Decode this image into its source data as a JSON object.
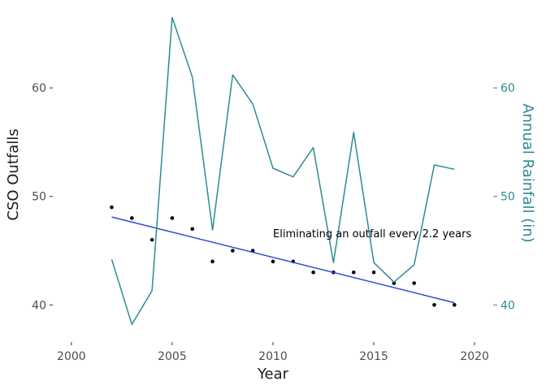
{
  "chart_data": {
    "type": "line",
    "title": "",
    "xlabel": "Year",
    "ylabel_left": "CSO Outfalls",
    "ylabel_right": "Annual Rainfall (in)",
    "xlim": [
      1999.2,
      2020.8
    ],
    "ylim_left": [
      36.8,
      67.5
    ],
    "ylim_right": [
      36.8,
      67.5
    ],
    "x_ticks": [
      2000,
      2005,
      2010,
      2015,
      2020
    ],
    "x_tick_labels": [
      "2000",
      "2005",
      "2010",
      "2015",
      "2020"
    ],
    "y_left_ticks": [
      40,
      50,
      60
    ],
    "y_left_tick_labels": [
      "40",
      "50",
      "60"
    ],
    "y_right_ticks": [
      40,
      50,
      60
    ],
    "y_right_tick_labels": [
      "40",
      "50",
      "60"
    ],
    "grid": false,
    "legend": "none",
    "series": [
      {
        "name": "CSO Outfalls",
        "kind": "scatter",
        "axis": "left",
        "color": "#000000",
        "x": [
          2002,
          2003,
          2004,
          2005,
          2006,
          2007,
          2008,
          2009,
          2010,
          2011,
          2012,
          2013,
          2014,
          2015,
          2016,
          2017,
          2018,
          2019
        ],
        "y": [
          49,
          48,
          46,
          48,
          47,
          44,
          45,
          45,
          44,
          44,
          43,
          43,
          43,
          43,
          42,
          42,
          40,
          40
        ]
      },
      {
        "name": "Trend",
        "kind": "line",
        "axis": "left",
        "color": "#2a4fd1",
        "x": [
          2002,
          2019
        ],
        "y": [
          48.1,
          40.2
        ]
      },
      {
        "name": "Annual Rainfall (in)",
        "kind": "line",
        "axis": "right",
        "color": "#2e8b94",
        "x": [
          2002,
          2003,
          2004,
          2005,
          2006,
          2007,
          2008,
          2009,
          2010,
          2011,
          2012,
          2013,
          2014,
          2015,
          2016,
          2017,
          2018,
          2019
        ],
        "y": [
          44.2,
          38.2,
          41.3,
          66.5,
          61.0,
          46.9,
          61.2,
          58.5,
          52.6,
          51.8,
          54.5,
          43.9,
          55.9,
          43.9,
          42.1,
          43.7,
          52.9,
          52.5
        ]
      }
    ],
    "annotations": [
      {
        "text": "Eliminating an outfall every 2.2 years",
        "x": 2010,
        "y": 46.6
      }
    ],
    "colors": {
      "right_axis": "#2e8b94",
      "tick_mark": "#333333",
      "tick_text": "#4d4d4d"
    }
  }
}
